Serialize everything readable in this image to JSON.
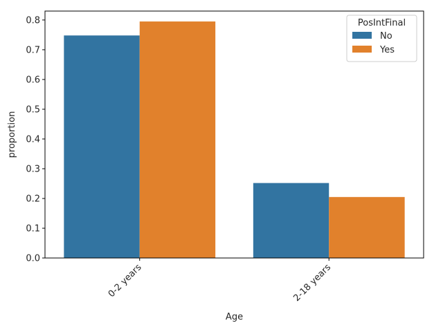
{
  "chart_data": {
    "type": "bar",
    "title": "",
    "xlabel": "Age",
    "ylabel": "proportion",
    "categories": [
      "0-2 years",
      "2-18 years"
    ],
    "series": [
      {
        "name": "No",
        "values": [
          0.748,
          0.252
        ],
        "color": "#3274a1"
      },
      {
        "name": "Yes",
        "values": [
          0.795,
          0.205
        ],
        "color": "#e1812c"
      }
    ],
    "ylim": [
      0,
      0.83
    ],
    "yticks": [
      0.0,
      0.1,
      0.2,
      0.3,
      0.4,
      0.5,
      0.6,
      0.7,
      0.8
    ],
    "ytick_labels": [
      "0.0",
      "0.1",
      "0.2",
      "0.3",
      "0.4",
      "0.5",
      "0.6",
      "0.7",
      "0.8"
    ],
    "grid": false,
    "legend": {
      "title": "PosIntFinal",
      "placement": "top-right"
    }
  }
}
